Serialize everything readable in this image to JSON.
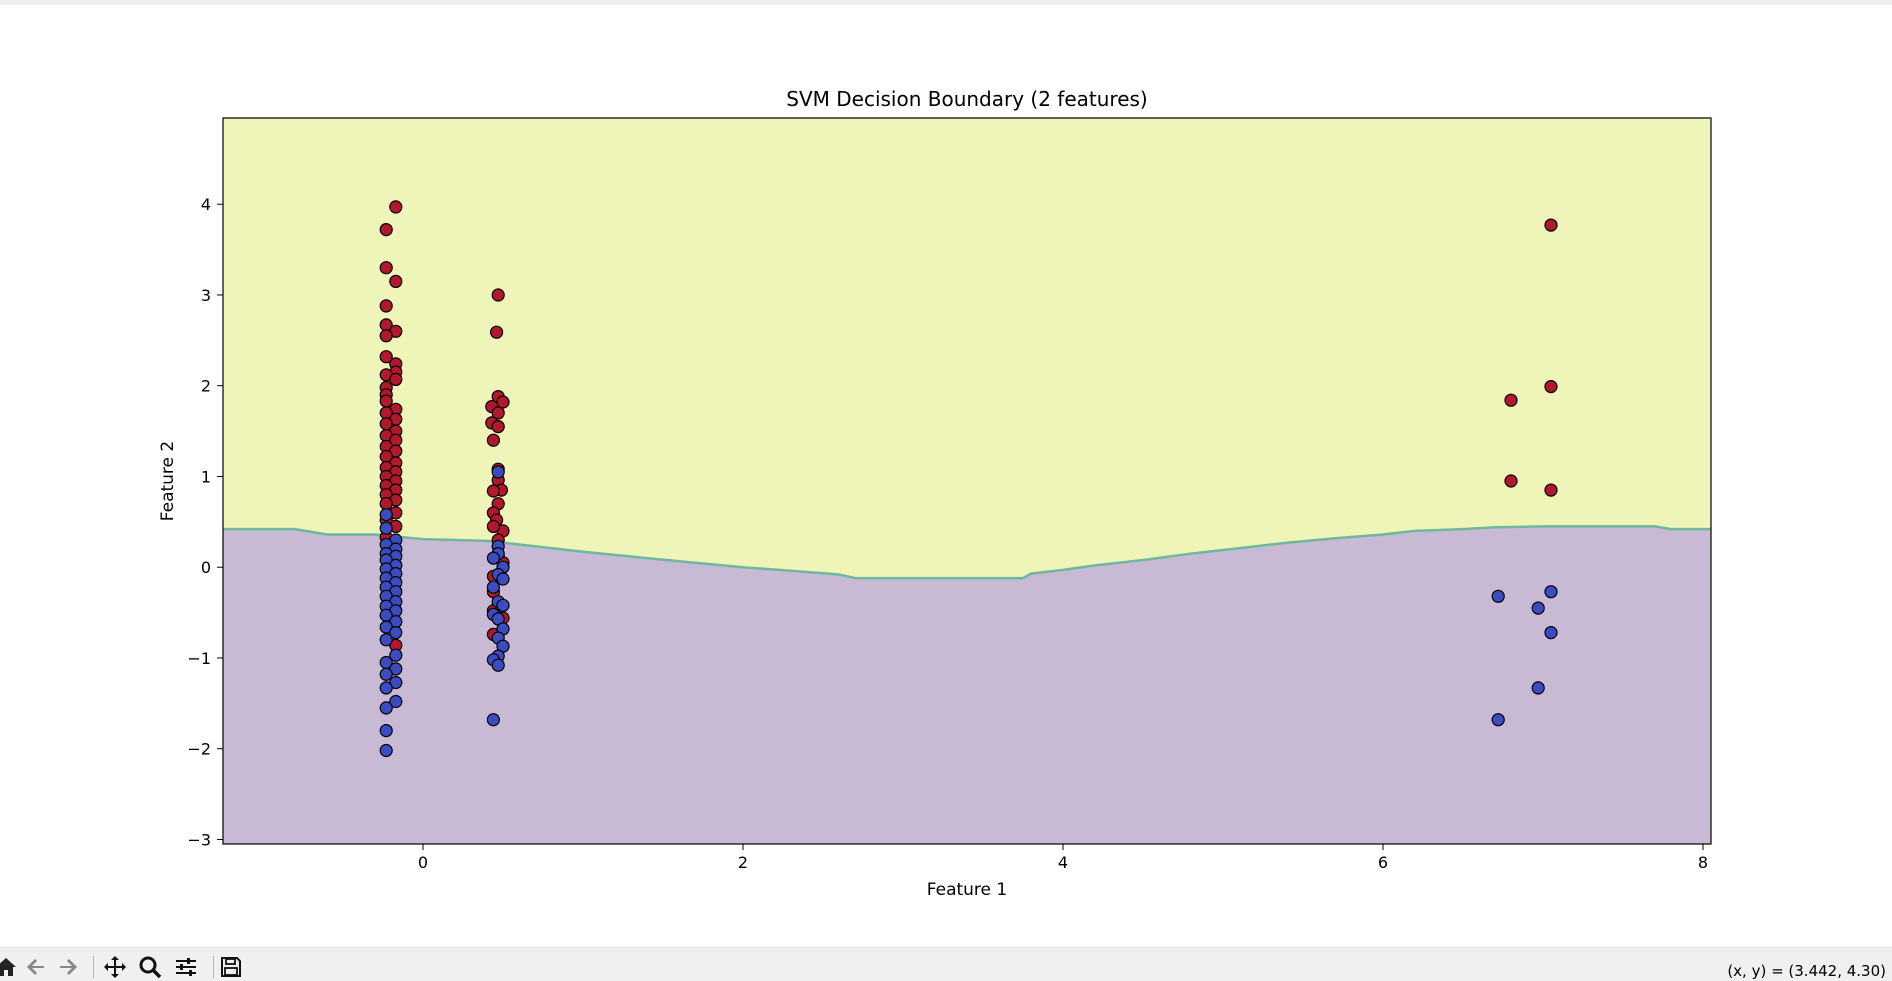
{
  "toolbar": {
    "coords_text": "(x, y) = (3.442, 4.30)",
    "buttons": [
      {
        "name": "home-icon"
      },
      {
        "name": "back-icon"
      },
      {
        "name": "forward-icon"
      },
      {
        "name": "pan-icon"
      },
      {
        "name": "zoom-icon"
      },
      {
        "name": "configure-subplots-icon"
      },
      {
        "name": "save-icon"
      }
    ]
  },
  "colors": {
    "region_upper": "#eff5b9",
    "region_lower": "#c8b9d4",
    "boundary": "#6fb89e",
    "class_red": "#b2182b",
    "class_blue": "#3b4cc0"
  },
  "chart_data": {
    "type": "scatter",
    "title": "SVM Decision Boundary (2 features)",
    "xlabel": "Feature 1",
    "ylabel": "Feature 2",
    "xlim": [
      -1.25,
      8.05
    ],
    "ylim": [
      -3.05,
      4.95
    ],
    "xticks": [
      "0",
      "2",
      "4",
      "6",
      "8"
    ],
    "xtick_values": [
      0,
      2,
      4,
      6,
      8
    ],
    "yticks": [
      "−3",
      "−2",
      "−1",
      "0",
      "1",
      "2",
      "3",
      "4"
    ],
    "ytick_values": [
      -3,
      -2,
      -1,
      0,
      1,
      2,
      3,
      4
    ],
    "grid": false,
    "decision_boundary": [
      [
        -1.25,
        0.42
      ],
      [
        -0.8,
        0.42
      ],
      [
        -0.6,
        0.36
      ],
      [
        -0.3,
        0.36
      ],
      [
        0.0,
        0.31
      ],
      [
        0.4,
        0.29
      ],
      [
        0.7,
        0.23
      ],
      [
        1.0,
        0.17
      ],
      [
        1.4,
        0.1
      ],
      [
        1.7,
        0.05
      ],
      [
        2.0,
        0.0
      ],
      [
        2.3,
        -0.04
      ],
      [
        2.6,
        -0.08
      ],
      [
        2.7,
        -0.12
      ],
      [
        3.0,
        -0.12
      ],
      [
        3.5,
        -0.12
      ],
      [
        3.75,
        -0.12
      ],
      [
        3.8,
        -0.07
      ],
      [
        4.0,
        -0.03
      ],
      [
        4.2,
        0.02
      ],
      [
        4.5,
        0.08
      ],
      [
        4.8,
        0.15
      ],
      [
        5.1,
        0.21
      ],
      [
        5.4,
        0.27
      ],
      [
        5.7,
        0.32
      ],
      [
        6.0,
        0.36
      ],
      [
        6.2,
        0.4
      ],
      [
        6.5,
        0.42
      ],
      [
        6.7,
        0.44
      ],
      [
        7.0,
        0.45
      ],
      [
        7.7,
        0.45
      ],
      [
        7.8,
        0.42
      ],
      [
        8.05,
        0.42
      ]
    ],
    "series": [
      {
        "color": "red",
        "points": [
          [
            -0.17,
            3.97
          ],
          [
            -0.23,
            3.72
          ],
          [
            -0.23,
            3.3
          ],
          [
            -0.17,
            3.15
          ],
          [
            -0.23,
            2.88
          ],
          [
            -0.23,
            2.67
          ],
          [
            -0.17,
            2.6
          ],
          [
            -0.23,
            2.55
          ],
          [
            -0.23,
            2.32
          ],
          [
            -0.17,
            2.24
          ],
          [
            -0.17,
            2.15
          ],
          [
            -0.23,
            2.12
          ],
          [
            -0.17,
            2.07
          ],
          [
            -0.23,
            1.98
          ],
          [
            -0.23,
            1.9
          ],
          [
            -0.17,
            1.74
          ],
          [
            -0.23,
            1.83
          ],
          [
            -0.23,
            1.7
          ],
          [
            -0.17,
            1.63
          ],
          [
            -0.23,
            1.58
          ],
          [
            -0.17,
            1.5
          ],
          [
            -0.23,
            1.45
          ],
          [
            -0.17,
            1.4
          ],
          [
            -0.23,
            1.33
          ],
          [
            -0.17,
            1.28
          ],
          [
            -0.23,
            1.22
          ],
          [
            -0.17,
            1.15
          ],
          [
            -0.23,
            1.1
          ],
          [
            -0.17,
            1.05
          ],
          [
            -0.23,
            1.0
          ],
          [
            -0.17,
            0.95
          ],
          [
            -0.23,
            0.9
          ],
          [
            -0.17,
            0.85
          ],
          [
            -0.23,
            0.8
          ],
          [
            -0.17,
            0.74
          ],
          [
            -0.23,
            0.7
          ],
          [
            -0.17,
            0.6
          ],
          [
            -0.23,
            0.52
          ],
          [
            -0.17,
            0.45
          ],
          [
            -0.23,
            0.33
          ],
          [
            -0.17,
            -0.86
          ],
          [
            0.47,
            3.0
          ],
          [
            0.46,
            2.59
          ],
          [
            0.47,
            1.88
          ],
          [
            0.5,
            1.82
          ],
          [
            0.43,
            1.77
          ],
          [
            0.47,
            1.7
          ],
          [
            0.43,
            1.59
          ],
          [
            0.47,
            1.55
          ],
          [
            0.44,
            1.4
          ],
          [
            0.47,
            1.08
          ],
          [
            0.47,
            0.96
          ],
          [
            0.49,
            0.85
          ],
          [
            0.44,
            0.84
          ],
          [
            0.47,
            0.7
          ],
          [
            0.44,
            0.6
          ],
          [
            0.46,
            0.52
          ],
          [
            0.5,
            0.4
          ],
          [
            0.44,
            0.45
          ],
          [
            0.47,
            0.3
          ],
          [
            0.47,
            0.12
          ],
          [
            0.5,
            0.05
          ],
          [
            0.44,
            -0.1
          ],
          [
            0.44,
            -0.27
          ],
          [
            0.47,
            -0.42
          ],
          [
            0.44,
            -0.48
          ],
          [
            0.5,
            -0.56
          ],
          [
            0.44,
            -0.74
          ],
          [
            7.05,
            3.77
          ],
          [
            6.8,
            1.84
          ],
          [
            7.05,
            1.99
          ],
          [
            6.8,
            0.95
          ],
          [
            7.05,
            0.85
          ]
        ]
      },
      {
        "color": "blue",
        "points": [
          [
            -0.17,
            0.3
          ],
          [
            -0.23,
            0.25
          ],
          [
            -0.17,
            0.2
          ],
          [
            -0.23,
            0.15
          ],
          [
            -0.17,
            0.12
          ],
          [
            -0.23,
            0.08
          ],
          [
            -0.17,
            0.02
          ],
          [
            -0.23,
            -0.02
          ],
          [
            -0.17,
            -0.07
          ],
          [
            -0.23,
            -0.12
          ],
          [
            -0.17,
            -0.17
          ],
          [
            -0.23,
            -0.22
          ],
          [
            -0.17,
            -0.27
          ],
          [
            -0.23,
            -0.32
          ],
          [
            -0.17,
            -0.38
          ],
          [
            -0.23,
            -0.43
          ],
          [
            -0.17,
            -0.48
          ],
          [
            -0.23,
            -0.53
          ],
          [
            -0.17,
            -0.6
          ],
          [
            -0.23,
            -0.66
          ],
          [
            -0.17,
            -0.72
          ],
          [
            -0.23,
            -0.8
          ],
          [
            -0.17,
            -0.97
          ],
          [
            -0.23,
            -1.05
          ],
          [
            -0.17,
            -1.12
          ],
          [
            -0.23,
            -1.18
          ],
          [
            -0.17,
            -1.27
          ],
          [
            -0.23,
            -1.33
          ],
          [
            -0.17,
            -1.48
          ],
          [
            -0.23,
            -1.55
          ],
          [
            -0.23,
            -1.8
          ],
          [
            -0.23,
            -2.02
          ],
          [
            -0.23,
            0.58
          ],
          [
            -0.23,
            0.43
          ],
          [
            0.47,
            1.05
          ],
          [
            0.47,
            0.23
          ],
          [
            0.47,
            0.15
          ],
          [
            0.44,
            0.1
          ],
          [
            0.5,
            0.0
          ],
          [
            0.47,
            -0.08
          ],
          [
            0.5,
            -0.13
          ],
          [
            0.44,
            -0.22
          ],
          [
            0.47,
            -0.38
          ],
          [
            0.5,
            -0.42
          ],
          [
            0.44,
            -0.52
          ],
          [
            0.47,
            -0.57
          ],
          [
            0.5,
            -0.68
          ],
          [
            0.47,
            -0.78
          ],
          [
            0.5,
            -0.87
          ],
          [
            0.47,
            -0.98
          ],
          [
            0.44,
            -1.02
          ],
          [
            0.47,
            -1.08
          ],
          [
            0.44,
            -1.68
          ],
          [
            6.72,
            -0.32
          ],
          [
            7.05,
            -0.27
          ],
          [
            6.97,
            -0.45
          ],
          [
            7.05,
            -0.72
          ],
          [
            6.97,
            -1.33
          ],
          [
            6.72,
            -1.68
          ]
        ]
      }
    ]
  }
}
